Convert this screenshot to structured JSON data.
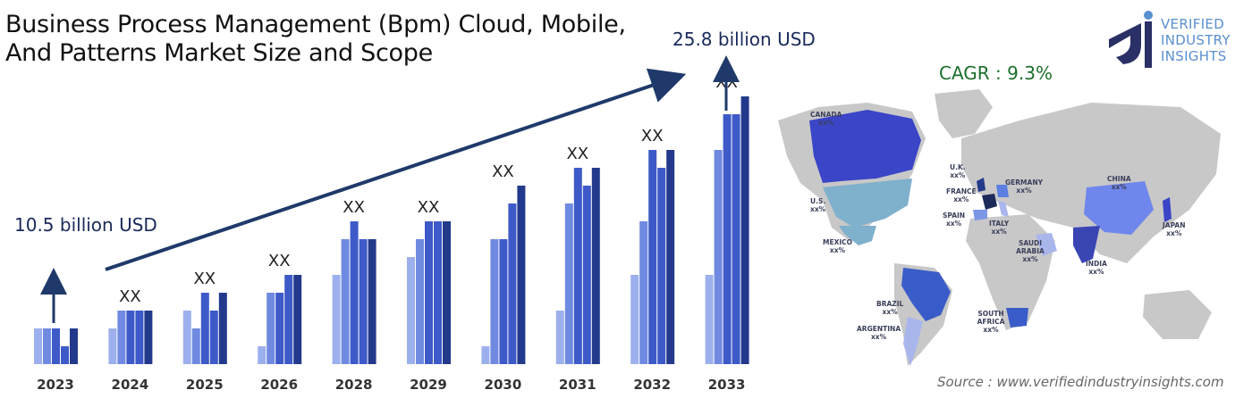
{
  "title_line1": "Business Process Management (Bpm) Cloud, Mobile,",
  "title_line2": "And Patterns Market Size and Scope",
  "start_value": "10.5 billion USD",
  "end_value": "25.8 billion USD",
  "cagr": "CAGR : 9.3%",
  "source": "Source : www.verifiedindustryinsights.com",
  "logo": {
    "line1": "VERIFIED",
    "line2": "INDUSTRY",
    "line3": "INSIGHTS"
  },
  "colors": {
    "shade1": "#9db0ee",
    "shade2": "#6f8ae0",
    "shade3": "#3e5ac8",
    "shade4": "#233a8c",
    "map_base": "#c8c8c8",
    "cagr": "#1c6f2c"
  },
  "chart_data": {
    "type": "bar",
    "categories": [
      "2023",
      "2024",
      "2025",
      "2026",
      "2028",
      "2029",
      "2030",
      "2031",
      "2032",
      "2033"
    ],
    "bar_labels": [
      "",
      "XX",
      "XX",
      "XX",
      "XX",
      "XX",
      "XX",
      "XX",
      "XX",
      "XX"
    ],
    "series": [
      {
        "values": [
          2,
          2,
          3,
          1,
          5,
          6,
          1,
          3,
          5,
          5
        ]
      },
      {
        "values": [
          2,
          3,
          2,
          4,
          7,
          7,
          7,
          9,
          8,
          12
        ]
      },
      {
        "values": [
          2,
          3,
          4,
          4,
          8,
          8,
          7,
          11,
          12,
          14
        ]
      },
      {
        "values": [
          1,
          3,
          3,
          5,
          7,
          8,
          9,
          10,
          11,
          14
        ]
      },
      {
        "values": [
          2,
          3,
          4,
          5,
          7,
          8,
          10,
          11,
          12,
          15
        ]
      }
    ],
    "ylim": [
      0,
      15
    ]
  },
  "map": {
    "labels": [
      {
        "name": "CANADA",
        "value": "xx%"
      },
      {
        "name": "U.S.",
        "value": "xx%"
      },
      {
        "name": "MEXICO",
        "value": "xx%"
      },
      {
        "name": "BRAZIL",
        "value": "xx%"
      },
      {
        "name": "ARGENTINA",
        "value": "xx%"
      },
      {
        "name": "U.K.",
        "value": "xx%"
      },
      {
        "name": "FRANCE",
        "value": "xx%"
      },
      {
        "name": "GERMANY",
        "value": "xx%"
      },
      {
        "name": "SPAIN",
        "value": "xx%"
      },
      {
        "name": "ITALY",
        "value": "xx%"
      },
      {
        "name": "SAUDI ARABIA",
        "value": "xx%"
      },
      {
        "name": "SOUTH AFRICA",
        "value": "xx%"
      },
      {
        "name": "CHINA",
        "value": "xx%"
      },
      {
        "name": "INDIA",
        "value": "xx%"
      },
      {
        "name": "JAPAN",
        "value": "xx%"
      }
    ]
  }
}
